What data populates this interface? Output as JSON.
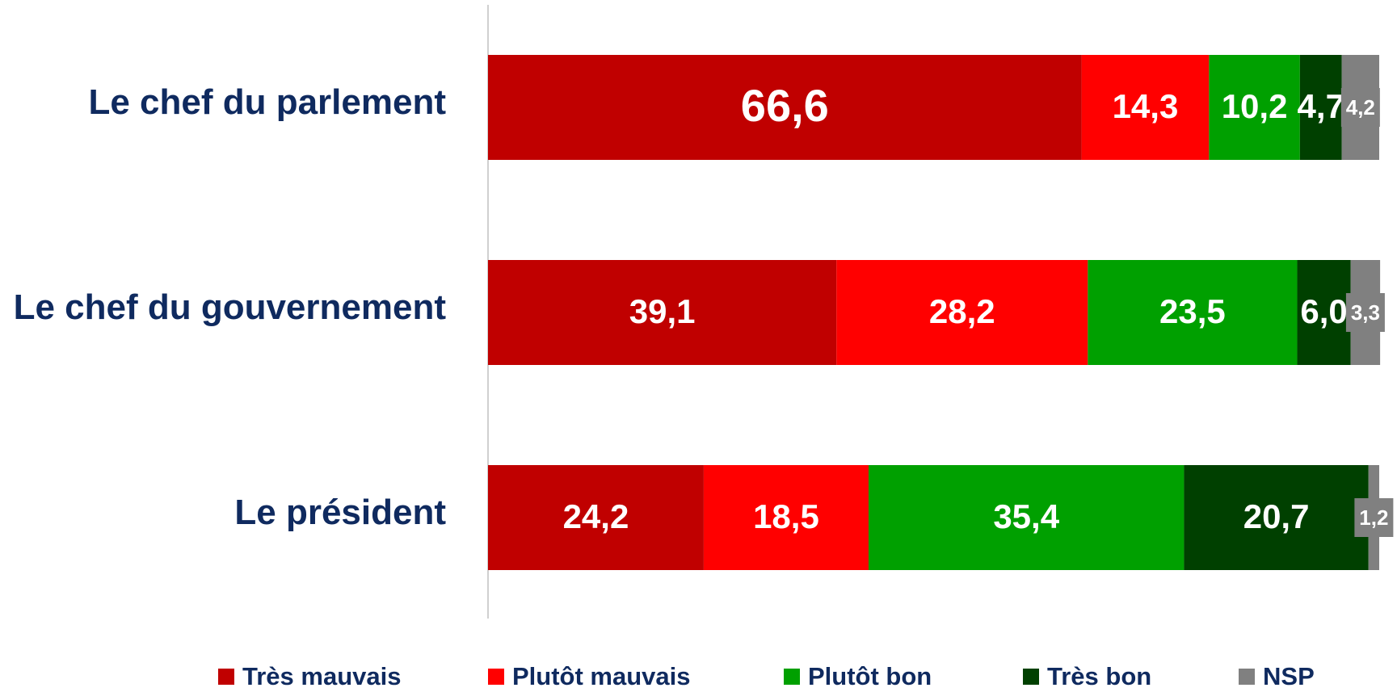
{
  "chart_data": {
    "type": "stacked-barh",
    "categories": [
      "Le chef du parlement",
      "Le chef du gouvernement",
      "Le président"
    ],
    "series": [
      {
        "name": "Très mauvais",
        "color": "#c00000",
        "values": [
          66.6,
          39.1,
          24.2
        ],
        "value_labels": [
          "66,6",
          "39,1",
          "24,2"
        ]
      },
      {
        "name": "Plutôt mauvais",
        "color": "#ff0000",
        "values": [
          14.3,
          28.2,
          18.5
        ],
        "value_labels": [
          "14,3",
          "28,2",
          "18,5"
        ]
      },
      {
        "name": "Plutôt bon",
        "color": "#00a000",
        "values": [
          10.2,
          23.5,
          35.4
        ],
        "value_labels": [
          "10,2",
          "23,5",
          "35,4"
        ]
      },
      {
        "name": "Très bon",
        "color": "#004000",
        "values": [
          4.7,
          6.0,
          20.7
        ],
        "value_labels": [
          "4,7",
          "6,0",
          "20,7"
        ]
      },
      {
        "name": "NSP",
        "color": "#808080",
        "values": [
          4.2,
          3.3,
          1.2
        ],
        "value_labels": [
          "4,2",
          "3,3",
          "1,2"
        ]
      }
    ],
    "xlim": [
      0,
      100
    ],
    "legend": "bottom"
  }
}
